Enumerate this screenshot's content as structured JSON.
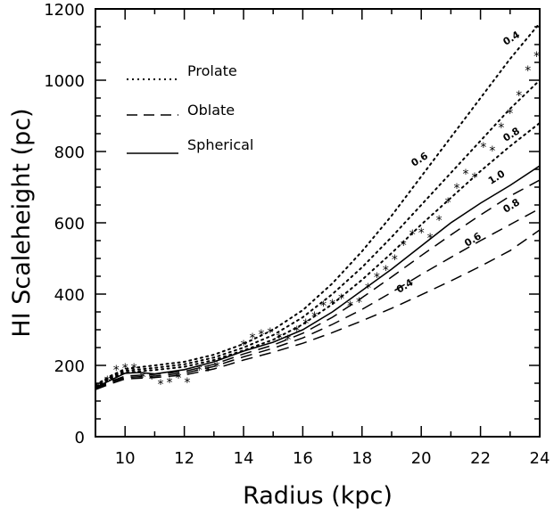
{
  "chart_data": {
    "type": "line",
    "xlabel": "Radius (kpc)",
    "ylabel": "HI Scaleheight (pc)",
    "xlim": [
      9,
      24
    ],
    "ylim": [
      0,
      1200
    ],
    "x_ticks": [
      "10",
      "12",
      "14",
      "16",
      "18",
      "20",
      "22",
      "24"
    ],
    "y_ticks": [
      "0",
      "200",
      "400",
      "600",
      "800",
      "1000",
      "1200"
    ],
    "grid": false,
    "legend": {
      "position": "top-left",
      "entries": [
        {
          "label": "Prolate",
          "style": "dotted"
        },
        {
          "label": "Oblate",
          "style": "dashed"
        },
        {
          "label": "Spherical",
          "style": "solid"
        }
      ]
    },
    "series": [
      {
        "label": "0.4",
        "style": "dotted",
        "x": [
          9,
          9.5,
          10,
          11,
          12,
          13,
          14,
          15,
          16,
          17,
          18,
          19,
          20,
          21,
          22,
          23,
          24
        ],
        "y": [
          145,
          170,
          190,
          200,
          210,
          230,
          260,
          300,
          355,
          430,
          520,
          620,
          730,
          840,
          950,
          1060,
          1160
        ],
        "label_at": [
          23.1,
          1110
        ]
      },
      {
        "label": "0.6",
        "style": "dotted",
        "x": [
          9,
          9.5,
          10,
          11,
          12,
          13,
          14,
          15,
          16,
          17,
          18,
          19,
          20,
          21,
          22,
          23,
          24
        ],
        "y": [
          143,
          167,
          185,
          193,
          203,
          222,
          250,
          285,
          335,
          400,
          475,
          560,
          650,
          740,
          830,
          920,
          1000
        ],
        "label_at": [
          20,
          770
        ]
      },
      {
        "label": "0.8",
        "style": "dotted",
        "x": [
          9,
          9.5,
          10,
          11,
          12,
          13,
          14,
          15,
          16,
          17,
          18,
          19,
          20,
          21,
          22,
          23,
          24
        ],
        "y": [
          140,
          163,
          180,
          187,
          196,
          215,
          242,
          272,
          315,
          372,
          440,
          515,
          595,
          670,
          745,
          815,
          880
        ],
        "label_at": [
          23.1,
          840
        ]
      },
      {
        "label": "1.0",
        "style": "solid",
        "x": [
          9,
          9.5,
          10,
          10.5,
          11,
          12,
          13,
          14,
          15,
          16,
          17,
          18,
          19,
          20,
          21,
          22,
          23,
          24
        ],
        "y": [
          138,
          158,
          178,
          180,
          176,
          188,
          210,
          240,
          265,
          300,
          350,
          410,
          470,
          535,
          600,
          655,
          705,
          760
        ],
        "label_at": [
          22.6,
          720
        ]
      },
      {
        "label": "0.8",
        "style": "dashed",
        "x": [
          9,
          9.5,
          10,
          11,
          12,
          13,
          14,
          15,
          16,
          17,
          18,
          19,
          20,
          21,
          22,
          23,
          24
        ],
        "y": [
          136,
          155,
          170,
          175,
          183,
          203,
          232,
          257,
          290,
          335,
          390,
          448,
          508,
          566,
          622,
          675,
          720
        ],
        "label_at": [
          23.1,
          640
        ]
      },
      {
        "label": "0.6",
        "style": "dashed",
        "x": [
          9,
          9.5,
          10,
          11,
          12,
          13,
          14,
          15,
          16,
          17,
          18,
          19,
          20,
          21,
          22,
          23,
          24
        ],
        "y": [
          134,
          152,
          166,
          170,
          178,
          197,
          224,
          248,
          277,
          315,
          357,
          405,
          455,
          503,
          550,
          595,
          640
        ],
        "label_at": [
          21.8,
          545
        ]
      },
      {
        "label": "0.4",
        "style": "dashed",
        "x": [
          9,
          9.5,
          10,
          11,
          12,
          13,
          14,
          15,
          16,
          17,
          18,
          19,
          20,
          21,
          22,
          23,
          24
        ],
        "y": [
          132,
          148,
          162,
          166,
          173,
          190,
          215,
          237,
          262,
          292,
          325,
          360,
          398,
          437,
          478,
          522,
          580
        ],
        "label_at": [
          19.5,
          415
        ]
      }
    ],
    "observed": {
      "marker": "*",
      "x": [
        9.1,
        9.4,
        9.7,
        10,
        10.3,
        10.6,
        10.9,
        11.2,
        11.5,
        11.8,
        12.1,
        12.5,
        12.8,
        13.1,
        14,
        14.3,
        14.6,
        14.9,
        15.2,
        15.5,
        15.8,
        16.1,
        16.4,
        16.7,
        17.0,
        17.3,
        17.6,
        17.9,
        18.2,
        18.5,
        18.8,
        19.1,
        19.4,
        19.7,
        20.0,
        20.3,
        20.6,
        20.9,
        21.2,
        21.5,
        21.8,
        22.1,
        22.4,
        22.7,
        23.0,
        23.3,
        23.6,
        23.9
      ],
      "y": [
        140,
        160,
        190,
        195,
        195,
        170,
        165,
        150,
        155,
        168,
        155,
        190,
        188,
        200,
        260,
        280,
        290,
        295,
        280,
        275,
        300,
        320,
        340,
        370,
        375,
        390,
        370,
        380,
        420,
        450,
        470,
        500,
        540,
        570,
        575,
        560,
        610,
        660,
        700,
        740,
        730,
        815,
        805,
        870,
        910,
        960,
        1030,
        1070
      ]
    }
  }
}
